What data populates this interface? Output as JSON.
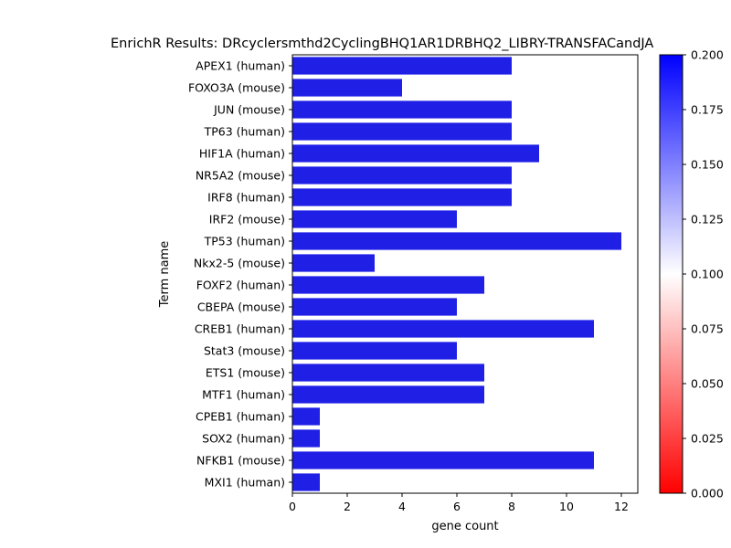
{
  "chart_data": {
    "type": "bar",
    "orientation": "horizontal",
    "title": "EnrichR Results: DRcyclersmthd2CyclingBHQ1AR1DRBHQ2_LIBRY-TRANSFACandJA",
    "xlabel": "gene count",
    "ylabel": "Term name",
    "xlim": [
      0,
      12.6
    ],
    "x_ticks": [
      "0",
      "2",
      "4",
      "6",
      "8",
      "10",
      "12"
    ],
    "categories": [
      "APEX1 (human)",
      "FOXO3A (mouse)",
      "JUN (mouse)",
      "TP63 (human)",
      "HIF1A (human)",
      "NR5A2 (mouse)",
      "IRF8 (human)",
      "IRF2 (mouse)",
      "TP53 (human)",
      "Nkx2-5 (mouse)",
      "FOXF2 (human)",
      "CBEPA (mouse)",
      "CREB1 (human)",
      "Stat3 (mouse)",
      "ETS1 (mouse)",
      "MTF1 (human)",
      "CPEB1 (human)",
      "SOX2 (human)",
      "NFKB1 (mouse)",
      "MXI1 (human)"
    ],
    "values": [
      8,
      4,
      8,
      8,
      9,
      8,
      8,
      6,
      12,
      3,
      7,
      6,
      11,
      6,
      7,
      7,
      1,
      1,
      11,
      1
    ],
    "bar_color": "#1f1fe6",
    "colorbar": {
      "range": [
        0.0,
        0.2
      ],
      "ticks": [
        "0.000",
        "0.025",
        "0.050",
        "0.075",
        "0.100",
        "0.125",
        "0.150",
        "0.175",
        "0.200"
      ],
      "colors": [
        "#ff0000",
        "#ffffff",
        "#0000ff"
      ]
    },
    "grid": false,
    "legend": "none"
  }
}
